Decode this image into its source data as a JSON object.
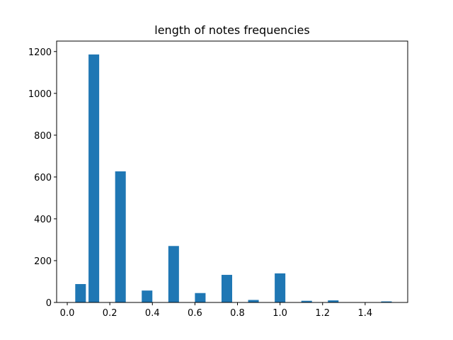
{
  "chart_data": {
    "type": "bar",
    "title": "length of notes frequencies",
    "xlabel": "",
    "ylabel": "",
    "bar_color": "#1f77b4",
    "bar_width": 0.05,
    "x": [
      0.0625,
      0.125,
      0.25,
      0.375,
      0.5,
      0.625,
      0.75,
      0.875,
      1.0,
      1.125,
      1.25,
      1.5
    ],
    "values": [
      88,
      1186,
      627,
      57,
      270,
      45,
      132,
      12,
      139,
      8,
      10,
      5
    ],
    "xlim": [
      -0.05,
      1.6
    ],
    "ylim": [
      0,
      1250
    ],
    "xticks": [
      0.0,
      0.2,
      0.4,
      0.6,
      0.8,
      1.0,
      1.2,
      1.4
    ],
    "xtick_labels": [
      "0.0",
      "0.2",
      "0.4",
      "0.6",
      "0.8",
      "1.0",
      "1.2",
      "1.4"
    ],
    "yticks": [
      0,
      200,
      400,
      600,
      800,
      1000,
      1200
    ],
    "ytick_labels": [
      "0",
      "200",
      "400",
      "600",
      "800",
      "1000",
      "1200"
    ],
    "grid": false,
    "legend": "none"
  }
}
